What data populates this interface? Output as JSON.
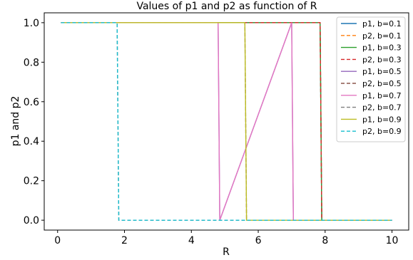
{
  "chart_data": {
    "type": "line",
    "title": "Values of p1 and p2 as function of R",
    "xlabel": "R",
    "ylabel": "p1 and p2",
    "xlim": [
      -0.4,
      10.5
    ],
    "ylim": [
      -0.05,
      1.05
    ],
    "xticks": [
      0,
      2,
      4,
      6,
      8,
      10
    ],
    "yticks": [
      0.0,
      0.2,
      0.4,
      0.6,
      0.8,
      1.0
    ],
    "xtick_labels": [
      "0",
      "2",
      "4",
      "6",
      "8",
      "10"
    ],
    "ytick_labels": [
      "0.0",
      "0.2",
      "0.4",
      "0.6",
      "0.8",
      "1.0"
    ],
    "grid": false,
    "legend_position": "top-right",
    "series": [
      {
        "name": "p1, b=0.1",
        "color": "#1f77b4",
        "dash": "solid",
        "x": [
          0.1,
          7.85,
          7.9,
          10.0
        ],
        "y": [
          1.0,
          1.0,
          0.0,
          0.0
        ]
      },
      {
        "name": "p2, b=0.1",
        "color": "#ff7f0e",
        "dash": "dashed",
        "x": [
          0.1,
          7.85,
          7.9,
          10.0
        ],
        "y": [
          1.0,
          1.0,
          0.0,
          0.0
        ]
      },
      {
        "name": "p1, b=0.3",
        "color": "#2ca02c",
        "dash": "solid",
        "x": [
          0.1,
          7.85,
          7.9,
          10.0
        ],
        "y": [
          1.0,
          1.0,
          0.0,
          0.0
        ]
      },
      {
        "name": "p2, b=0.3",
        "color": "#d62728",
        "dash": "dashed",
        "x": [
          0.1,
          7.85,
          7.9,
          10.0
        ],
        "y": [
          1.0,
          1.0,
          0.0,
          0.0
        ]
      },
      {
        "name": "p1, b=0.5",
        "color": "#9467bd",
        "dash": "solid",
        "x": [
          0.1,
          4.8,
          4.85,
          7.0,
          7.05,
          10.0
        ],
        "y": [
          1.0,
          1.0,
          0.0,
          1.0,
          0.0,
          0.0
        ]
      },
      {
        "name": "p2, b=0.5",
        "color": "#8c564b",
        "dash": "dashed",
        "x": [
          0.1,
          5.6,
          5.65,
          10.0
        ],
        "y": [
          1.0,
          1.0,
          0.0,
          0.0
        ]
      },
      {
        "name": "p1, b=0.7",
        "color": "#e377c2",
        "dash": "solid",
        "x": [
          0.1,
          4.8,
          4.85,
          7.0,
          7.05,
          10.0
        ],
        "y": [
          1.0,
          1.0,
          0.0,
          1.0,
          0.0,
          0.0
        ]
      },
      {
        "name": "p2, b=0.7",
        "color": "#7f7f7f",
        "dash": "dashed",
        "x": [
          0.1,
          1.78,
          1.83,
          10.0
        ],
        "y": [
          1.0,
          1.0,
          0.0,
          0.0
        ]
      },
      {
        "name": "p1, b=0.9",
        "color": "#bcbd22",
        "dash": "solid",
        "x": [
          0.1,
          5.6,
          5.65,
          10.0
        ],
        "y": [
          1.0,
          1.0,
          0.0,
          0.0
        ]
      },
      {
        "name": "p2, b=0.9",
        "color": "#17becf",
        "dash": "dashed",
        "x": [
          0.1,
          1.78,
          1.83,
          10.0
        ],
        "y": [
          1.0,
          1.0,
          0.0,
          0.0
        ]
      }
    ]
  }
}
